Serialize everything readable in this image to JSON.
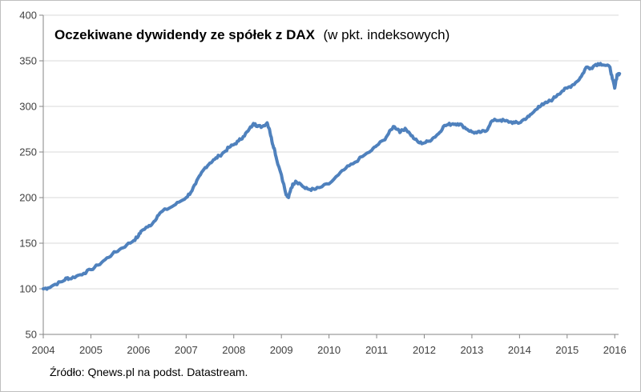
{
  "chart_data": {
    "type": "line",
    "title": "Oczekiwane dywidendy ze spółek z DAX",
    "subtitle": "(w pkt. indeksowych)",
    "xlabel": "",
    "ylabel": "",
    "xlim": [
      2004,
      2016.2
    ],
    "ylim": [
      50,
      400
    ],
    "y_ticks": [
      "50",
      "100",
      "150",
      "200",
      "250",
      "300",
      "350",
      "400"
    ],
    "x_ticks": [
      "2004",
      "2005",
      "2006",
      "2007",
      "2008",
      "2009",
      "2010",
      "2011",
      "2012",
      "2013",
      "2014",
      "2015",
      "2016"
    ],
    "grid": "horizontal",
    "legend": "none",
    "line_color": "#4f81bd",
    "series": [
      {
        "x": [
          2004.0,
          2004.1,
          2004.25,
          2004.4,
          2004.5,
          2004.55,
          2004.7,
          2004.85,
          2005.0,
          2005.15,
          2005.3,
          2005.45,
          2005.6,
          2005.75,
          2005.9,
          2006.0,
          2006.05,
          2006.2,
          2006.3,
          2006.4,
          2006.5,
          2006.7,
          2006.85,
          2007.0,
          2007.1,
          2007.2,
          2007.3,
          2007.4,
          2007.5,
          2007.6,
          2007.7,
          2007.8,
          2007.9,
          2008.0,
          2008.1,
          2008.2,
          2008.3,
          2008.4,
          2008.45,
          2008.5,
          2008.6,
          2008.7,
          2008.75,
          2008.8,
          2008.85,
          2008.9,
          2009.0,
          2009.1,
          2009.15,
          2009.2,
          2009.25,
          2009.3,
          2009.4,
          2009.5,
          2009.6,
          2009.7,
          2009.8,
          2010.0,
          2010.2,
          2010.35,
          2010.5,
          2010.7,
          2010.9,
          2011.0,
          2011.15,
          2011.25,
          2011.35,
          2011.45,
          2011.5,
          2011.6,
          2011.7,
          2011.8,
          2011.9,
          2012.0,
          2012.1,
          2012.2,
          2012.3,
          2012.4,
          2012.5,
          2012.6,
          2012.7,
          2012.8,
          2012.9,
          2013.0,
          2013.1,
          2013.2,
          2013.3,
          2013.4,
          2013.5,
          2013.6,
          2013.7,
          2013.8,
          2013.9,
          2014.0,
          2014.1,
          2014.2,
          2014.3,
          2014.4,
          2014.5,
          2014.6,
          2014.7,
          2014.8,
          2014.9,
          2015.0,
          2015.1,
          2015.2,
          2015.3,
          2015.4,
          2015.5,
          2015.6,
          2015.7,
          2015.8,
          2015.9,
          2015.95,
          2016.0,
          2016.05,
          2016.1
        ],
        "values": [
          100,
          101,
          105,
          108,
          112,
          111,
          114,
          117,
          121,
          126,
          132,
          138,
          143,
          148,
          153,
          158,
          163,
          168,
          172,
          180,
          185,
          190,
          195,
          200,
          206,
          215,
          225,
          233,
          238,
          242,
          246,
          250,
          255,
          258,
          262,
          267,
          273,
          280,
          281,
          278,
          278,
          282,
          275,
          262,
          254,
          242,
          225,
          203,
          200,
          210,
          215,
          218,
          215,
          210,
          209,
          209,
          211,
          215,
          225,
          232,
          237,
          245,
          252,
          257,
          263,
          270,
          278,
          275,
          272,
          276,
          270,
          264,
          260,
          260,
          262,
          266,
          270,
          278,
          280,
          281,
          281,
          279,
          275,
          272,
          271,
          272,
          273,
          283,
          285,
          285,
          284,
          283,
          282,
          282,
          286,
          289,
          294,
          300,
          302,
          305,
          308,
          313,
          317,
          320,
          323,
          327,
          333,
          343,
          342,
          346,
          347,
          345,
          343,
          330,
          320,
          335,
          336
        ]
      }
    ]
  },
  "source": "Źródło: Qnews.pl na podst. Datastream."
}
